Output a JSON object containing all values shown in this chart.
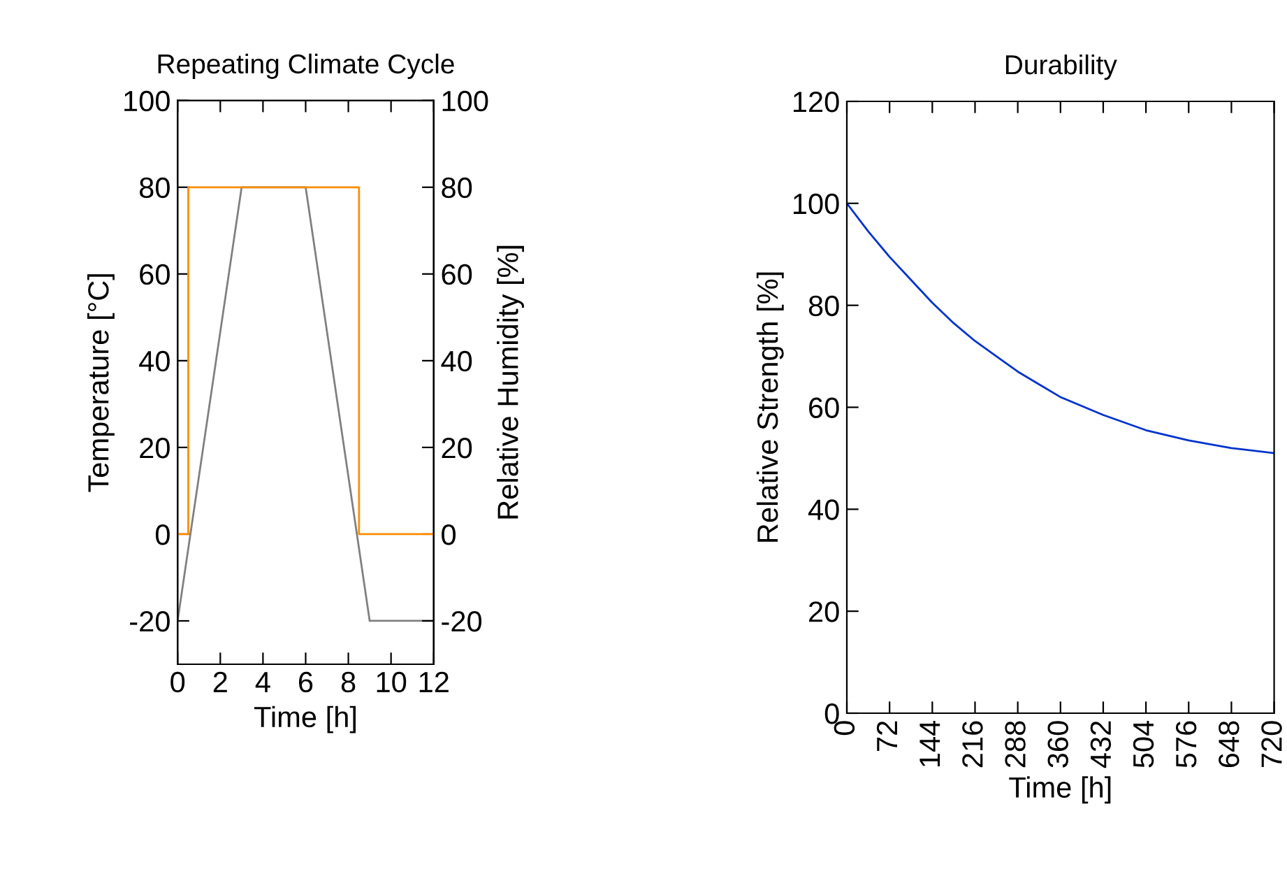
{
  "chart_data": [
    {
      "type": "line",
      "title": "Repeating Climate Cycle",
      "xlabel": "Time [h]",
      "ylabel": "Temperature [°C]",
      "y2label": "Relative Humidity [%]",
      "xlim": [
        0,
        12
      ],
      "xticks": [
        0,
        2,
        4,
        6,
        8,
        10,
        12
      ],
      "ylim": [
        -30,
        100
      ],
      "yticks": [
        -20,
        0,
        20,
        40,
        60,
        80,
        100
      ],
      "y2lim": [
        -30,
        100
      ],
      "y2ticks": [
        -20,
        0,
        20,
        40,
        60,
        80,
        100
      ],
      "series": [
        {
          "type": "line",
          "color": "#808080",
          "x": [
            0,
            3,
            6,
            9,
            12
          ],
          "values": [
            -20,
            80,
            80,
            -20,
            -20
          ]
        },
        {
          "type": "step",
          "axis": "y2",
          "color": "#ff8c00",
          "x": [
            0,
            0.5,
            8.5,
            12
          ],
          "values": [
            0,
            80,
            0,
            0
          ]
        }
      ]
    },
    {
      "type": "line",
      "title": "Durability",
      "xlabel": "Time [h]",
      "ylabel": "Relative Strength [%]",
      "xlim": [
        0,
        720
      ],
      "xticks": [
        0,
        72,
        144,
        216,
        288,
        360,
        432,
        504,
        576,
        648,
        720
      ],
      "ylim": [
        0,
        120
      ],
      "yticks": [
        0,
        20,
        40,
        60,
        80,
        100,
        120
      ],
      "series": [
        {
          "color": "#0033cc",
          "x": [
            0,
            36,
            72,
            108,
            144,
            180,
            216,
            252,
            288,
            324,
            360,
            432,
            504,
            576,
            648,
            720
          ],
          "values": [
            100,
            94.5,
            89.5,
            85,
            80.5,
            76.5,
            73,
            70,
            67,
            64.5,
            62,
            58.5,
            55.5,
            53.5,
            52,
            51
          ]
        }
      ]
    }
  ]
}
